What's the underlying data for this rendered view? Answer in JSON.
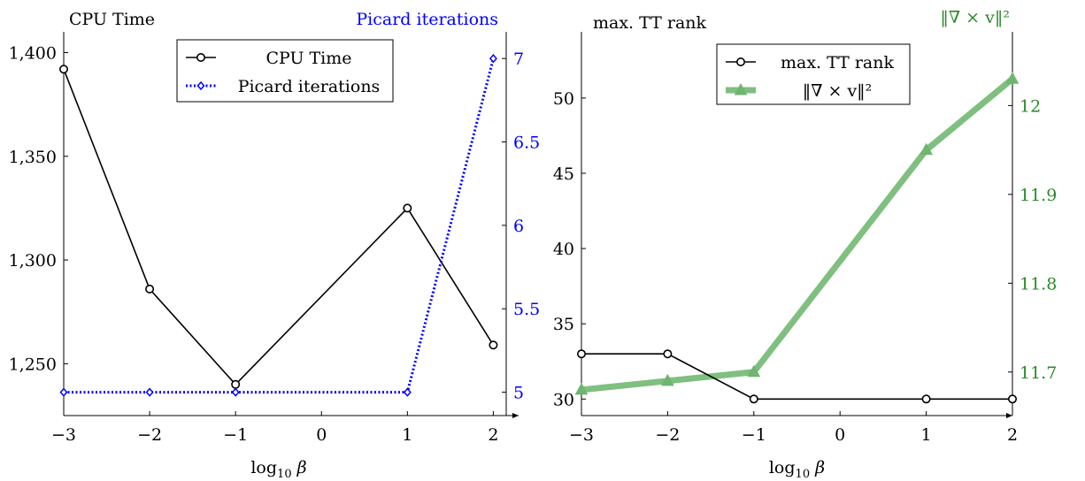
{
  "chart_data": [
    {
      "type": "line",
      "xlabel": {
        "main": "log",
        "sub": "10",
        "tail": " β"
      },
      "x_ticks": [
        -3,
        -2,
        -1,
        0,
        1,
        2
      ],
      "x_tick_labels": [
        "−3",
        "−2",
        "−1",
        "0",
        "1",
        "2"
      ],
      "xlim": [
        -3,
        2.15
      ],
      "left_axis": {
        "title": "CPU Time",
        "ylim": [
          1225,
          1410
        ],
        "ticks": [
          1250,
          1300,
          1350,
          1400
        ],
        "tick_labels": [
          "1,250",
          "1,300",
          "1,350",
          "1,400"
        ],
        "color": "#000000"
      },
      "right_axis": {
        "title": "Picard iterations",
        "ylim": [
          4.86,
          7.16
        ],
        "ticks": [
          5,
          5.5,
          6,
          6.5,
          7
        ],
        "tick_labels": [
          "5",
          "5.5",
          "6",
          "6.5",
          "7"
        ],
        "color": "#0000ff"
      },
      "legend": {
        "position": "top-center",
        "entries": [
          "CPU Time",
          "Picard iterations"
        ]
      },
      "series": [
        {
          "name": "CPU Time",
          "axis": "left",
          "color": "#000000",
          "style": "solid",
          "marker": "circle",
          "x": [
            -3,
            -2,
            -1,
            1,
            2
          ],
          "y": [
            1392,
            1286,
            1240,
            1325,
            1259
          ]
        },
        {
          "name": "Picard iterations",
          "axis": "right",
          "color": "#0000ff",
          "style": "dotted",
          "marker": "diamond",
          "x": [
            -3,
            -2,
            -1,
            1,
            2
          ],
          "y": [
            5,
            5,
            5,
            5,
            7
          ]
        }
      ]
    },
    {
      "type": "line",
      "xlabel": {
        "main": "log",
        "sub": "10",
        "tail": " β"
      },
      "x_ticks": [
        -3,
        -2,
        -1,
        0,
        1,
        2
      ],
      "x_tick_labels": [
        "−3",
        "−2",
        "−1",
        "0",
        "1",
        "2"
      ],
      "xlim": [
        -3,
        2
      ],
      "left_axis": {
        "title": "max. TT rank",
        "ylim": [
          28.9,
          54.4
        ],
        "ticks": [
          30,
          35,
          40,
          45,
          50
        ],
        "tick_labels": [
          "30",
          "35",
          "40",
          "45",
          "50"
        ],
        "color": "#000000"
      },
      "right_axis": {
        "title": "‖∇ × v‖²",
        "ylim": [
          11.651,
          12.083
        ],
        "ticks": [
          11.7,
          11.8,
          11.9,
          12
        ],
        "tick_labels": [
          "11.7",
          "11.8",
          "11.9",
          "12"
        ],
        "color": "#2a8a2a"
      },
      "legend": {
        "position": "top-center",
        "entries": [
          "max. TT rank",
          "‖∇ × v‖²"
        ]
      },
      "series": [
        {
          "name": "max. TT rank",
          "axis": "left",
          "color": "#000000",
          "style": "solid",
          "marker": "circle",
          "x": [
            -3,
            -2,
            -1,
            1,
            2
          ],
          "y": [
            33,
            33,
            30,
            30,
            30
          ]
        },
        {
          "name": "‖∇ × v‖²",
          "axis": "right",
          "color": "#7fbf7f",
          "style": "thick",
          "marker": "triangle",
          "x": [
            -3,
            -2,
            -1,
            1,
            2
          ],
          "y": [
            11.68,
            11.69,
            11.7,
            11.95,
            12.03
          ]
        }
      ]
    }
  ]
}
